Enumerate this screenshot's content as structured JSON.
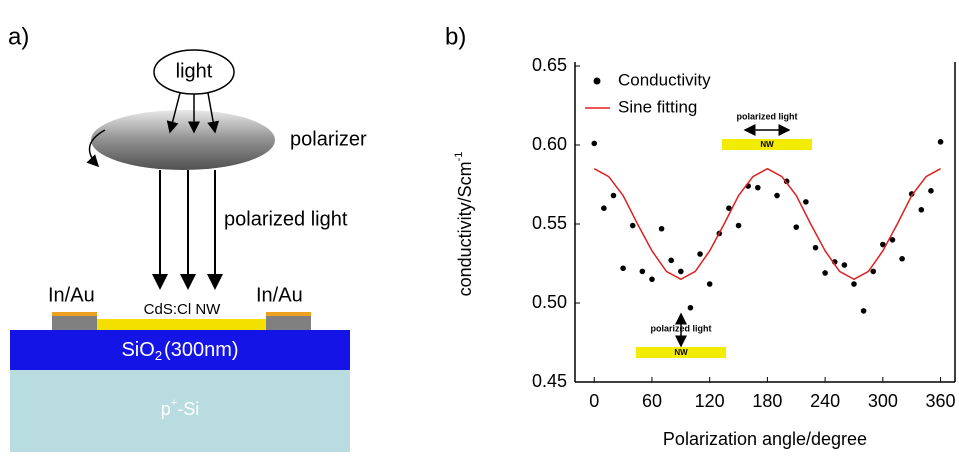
{
  "diagram": {
    "panel_label": "a)",
    "light": "light",
    "polarizer": "polarizer",
    "polarized_light": "polarized light",
    "contact_left": "In/Au",
    "contact_right": "In/Au",
    "nanowire": "CdS:Cl NW",
    "oxide": "SiO",
    "oxide_sub": "2",
    "oxide_thickness": "(300nm)",
    "substrate": "p",
    "substrate_sup": "+",
    "substrate_rest": "-Si"
  },
  "chart_data": {
    "type": "scatter",
    "panel_label": "b)",
    "x_label": "Polarization angle/degree",
    "y_label": "conductivity/Scm",
    "y_label_sup": "-1",
    "xlim": [
      -20,
      375
    ],
    "xticks": [
      0,
      60,
      120,
      180,
      240,
      300,
      360
    ],
    "ylim": [
      0.45,
      0.65
    ],
    "yticks": [
      0.45,
      {
        "value": 0.5,
        "label": "0.50"
      },
      0.55,
      {
        "value": 0.6,
        "label": "0.60"
      },
      0.65
    ],
    "series": [
      {
        "name": "Conductivity",
        "color": "#000000",
        "x": [
          0,
          10,
          20,
          30,
          40,
          50,
          60,
          70,
          80,
          90,
          100,
          110,
          120,
          130,
          140,
          150,
          160,
          170,
          190,
          200,
          210,
          220,
          230,
          240,
          250,
          260,
          270,
          280,
          290,
          300,
          310,
          320,
          330,
          340,
          350,
          360
        ],
        "values": [
          0.601,
          0.56,
          0.568,
          0.522,
          0.549,
          0.52,
          0.515,
          0.547,
          0.527,
          0.52,
          0.497,
          0.531,
          0.512,
          0.544,
          0.56,
          0.549,
          0.574,
          0.573,
          0.568,
          0.577,
          0.548,
          0.564,
          0.535,
          0.519,
          0.526,
          0.524,
          0.512,
          0.495,
          0.52,
          0.537,
          0.54,
          0.528,
          0.569,
          0.559,
          0.571,
          0.602
        ]
      },
      {
        "name": "Sine fitting",
        "color": "#e02020",
        "x": [
          0,
          15,
          30,
          45,
          60,
          75,
          90,
          105,
          120,
          135,
          150,
          165,
          180,
          195,
          210,
          225,
          240,
          255,
          270,
          285,
          300,
          315,
          330,
          345,
          360
        ],
        "values": [
          0.585,
          0.58,
          0.568,
          0.55,
          0.533,
          0.52,
          0.515,
          0.52,
          0.533,
          0.55,
          0.568,
          0.58,
          0.585,
          0.58,
          0.568,
          0.55,
          0.533,
          0.52,
          0.515,
          0.52,
          0.533,
          0.55,
          0.568,
          0.58,
          0.585
        ]
      }
    ],
    "insets": [
      {
        "caption": "polarized light",
        "label": "NW"
      },
      {
        "caption": "polarized light",
        "label": "NW"
      }
    ]
  }
}
